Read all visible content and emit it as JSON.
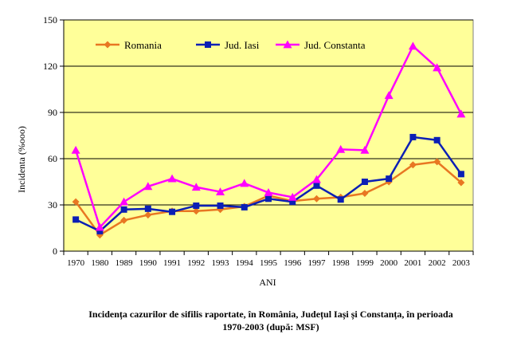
{
  "chart_data": {
    "type": "line",
    "categories": [
      "1970",
      "1980",
      "1989",
      "1990",
      "1991",
      "1992",
      "1993",
      "1994",
      "1995",
      "1996",
      "1997",
      "1998",
      "1999",
      "2000",
      "2001",
      "2002",
      "2003"
    ],
    "series": [
      {
        "name": "Romania",
        "color": "#e87722",
        "marker": "diamond",
        "values": [
          32,
          10.5,
          20,
          23.5,
          26,
          26,
          27,
          29,
          36,
          32.5,
          34,
          35,
          37.5,
          45,
          56,
          58,
          44.5
        ]
      },
      {
        "name": "Jud. Iasi",
        "color": "#0b1fb5",
        "marker": "square",
        "values": [
          20.5,
          13,
          27,
          27.5,
          25.5,
          29.5,
          29.5,
          28.5,
          34,
          32,
          42.5,
          33.5,
          45,
          47,
          74,
          72,
          50
        ]
      },
      {
        "name": "Jud. Constanta",
        "color": "#ff00ff",
        "marker": "triangle",
        "values": [
          65.5,
          15.5,
          32,
          42,
          47,
          41.5,
          38.5,
          44,
          38,
          35,
          46.5,
          66,
          65.5,
          101,
          133,
          119,
          89
        ]
      }
    ],
    "ylim": [
      0,
      150
    ],
    "yticks": [
      "0",
      "30",
      "60",
      "90",
      "120",
      "150"
    ],
    "ylabel": "Incidenta (%ooo)",
    "xlabel": "ANI",
    "grid": true,
    "legend_position": "top",
    "plot_background": "#ffff99"
  },
  "caption": {
    "line1": "Incidența cazurilor de sifilis raportate, în România, Județul Iași și Constanța, în perioada",
    "line2": "1970-2003 (după: MSF)"
  }
}
